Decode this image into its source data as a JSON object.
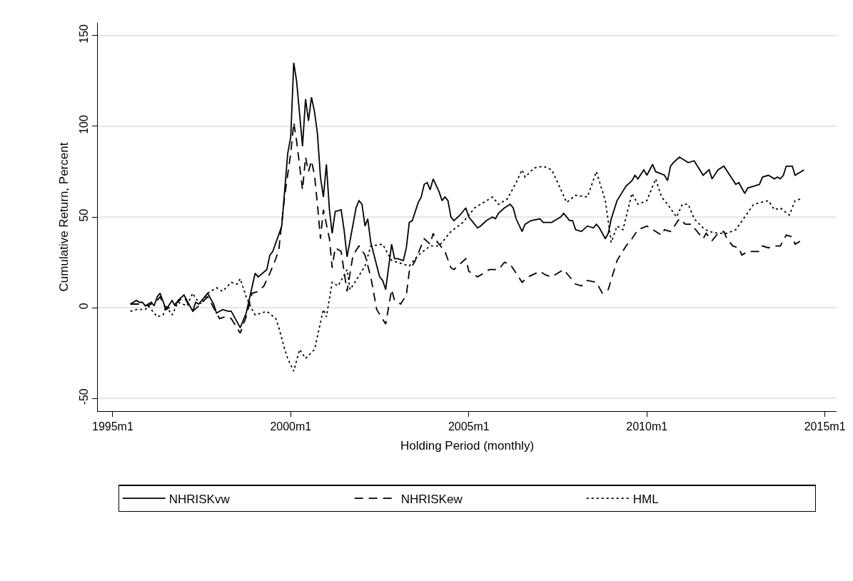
{
  "chart_data": {
    "type": "line",
    "xlabel": "Holding Period (monthly)",
    "ylabel": "Cumulative Return, Percent",
    "xlim": [
      "1994-08",
      "2015-05"
    ],
    "xticks": [
      {
        "value": "1995-01",
        "label": "1995m1"
      },
      {
        "value": "2000-01",
        "label": "2000m1"
      },
      {
        "value": "2005-01",
        "label": "2005m1"
      },
      {
        "value": "2010-01",
        "label": "2010m1"
      },
      {
        "value": "2015-01",
        "label": "2015m1"
      }
    ],
    "ylim": [
      -57,
      157
    ],
    "yticks": [
      -50,
      0,
      50,
      100,
      150
    ],
    "grid": "y",
    "legend": "bottom",
    "marker": "none",
    "series": [
      {
        "name": "NHRISKvw",
        "color": "#000000",
        "line_style": "solid",
        "x": [
          "1995-07",
          "1995-09",
          "1995-10",
          "1995-11",
          "1995-12",
          "1996-02",
          "1996-03",
          "1996-04",
          "1996-05",
          "1996-07",
          "1996-09",
          "1996-10",
          "1996-11",
          "1997-01",
          "1997-04",
          "1997-05",
          "1997-06",
          "1997-09",
          "1997-11",
          "1997-12",
          "1998-02",
          "1998-04",
          "1998-05",
          "1998-08",
          "1998-10",
          "1999-01",
          "1999-02",
          "1999-05",
          "1999-06",
          "1999-07",
          "1999-10",
          "1999-12",
          "2000-01",
          "2000-02",
          "2000-03",
          "2000-05",
          "2000-06",
          "2000-07",
          "2000-08",
          "2000-09",
          "2000-10",
          "2000-11",
          "2000-12",
          "2001-01",
          "2001-02",
          "2001-03",
          "2001-04",
          "2001-06",
          "2001-07",
          "2001-08",
          "2001-11",
          "2001-12",
          "2002-01",
          "2002-02",
          "2002-03",
          "2002-04",
          "2002-07",
          "2002-08",
          "2002-09",
          "2002-11",
          "2002-12",
          "2003-01",
          "2003-03",
          "2003-04",
          "2003-05",
          "2003-06",
          "2003-08",
          "2003-09",
          "2003-10",
          "2003-11",
          "2003-12",
          "2004-01",
          "2004-03",
          "2004-04",
          "2004-05",
          "2004-06",
          "2004-07",
          "2004-08",
          "2004-10",
          "2004-12",
          "2005-01",
          "2005-03",
          "2005-04",
          "2005-05",
          "2005-07",
          "2005-09",
          "2005-10",
          "2005-11",
          "2006-01",
          "2006-03",
          "2006-04",
          "2006-05",
          "2006-07",
          "2006-08",
          "2006-10",
          "2007-01",
          "2007-02",
          "2007-05",
          "2007-07",
          "2007-08",
          "2007-09",
          "2007-11",
          "2007-12",
          "2008-01",
          "2008-03",
          "2008-05",
          "2008-07",
          "2008-08",
          "2008-09",
          "2008-11",
          "2008-12",
          "2009-01",
          "2009-03",
          "2009-06",
          "2009-08",
          "2009-09",
          "2009-10",
          "2009-12",
          "2010-01",
          "2010-03",
          "2010-04",
          "2010-07",
          "2010-08",
          "2010-09",
          "2010-10",
          "2010-12",
          "2011-03",
          "2011-05",
          "2011-08",
          "2011-10",
          "2011-11",
          "2012-01",
          "2012-03",
          "2012-05",
          "2012-07",
          "2012-08",
          "2012-10",
          "2012-11",
          "2013-01",
          "2013-03",
          "2013-04",
          "2013-06",
          "2013-08",
          "2013-09",
          "2013-10",
          "2013-11",
          "2013-12",
          "2014-02",
          "2014-03",
          "2014-06"
        ],
        "values": [
          2,
          4,
          3,
          3,
          1,
          3,
          1,
          6,
          8,
          -1,
          4,
          1,
          4,
          7,
          -2,
          3,
          2,
          8,
          2,
          -3,
          -1,
          -2,
          -2,
          -11,
          -3,
          19,
          17,
          21,
          29,
          31,
          45,
          85,
          94,
          135,
          125,
          89,
          115,
          103,
          116,
          108,
          96,
          72,
          61,
          79,
          54,
          41,
          53,
          54,
          43,
          28,
          55,
          59,
          57,
          45,
          49,
          36,
          17,
          15,
          10,
          35,
          27,
          27,
          26,
          33,
          47,
          48,
          58,
          61,
          68,
          69,
          65,
          71,
          64,
          59,
          61,
          59,
          50,
          48,
          51,
          55,
          50,
          46,
          44,
          45,
          48,
          50,
          49,
          52,
          55,
          57,
          55,
          49,
          42,
          46,
          48,
          49,
          47,
          47,
          49,
          50,
          52,
          48,
          48,
          43,
          42,
          45,
          44,
          46,
          44,
          38,
          41,
          49,
          59,
          67,
          70,
          73,
          71,
          76,
          73,
          79,
          75,
          73,
          70,
          78,
          80,
          83,
          80,
          81,
          73,
          76,
          71,
          76,
          78,
          73,
          68,
          69,
          63,
          66,
          67,
          68,
          72,
          73,
          71,
          72,
          71,
          73,
          78,
          78,
          73,
          76
        ]
      },
      {
        "name": "NHRISKew",
        "color": "#000000",
        "line_style": "dashed",
        "x": [
          "1995-07",
          "1995-10",
          "1996-01",
          "1996-04",
          "1996-05",
          "1996-07",
          "1996-10",
          "1997-01",
          "1997-04",
          "1997-06",
          "1997-09",
          "1997-11",
          "1998-01",
          "1998-03",
          "1998-05",
          "1998-08",
          "1998-10",
          "1998-12",
          "1999-02",
          "1999-04",
          "1999-06",
          "1999-08",
          "1999-09",
          "1999-11",
          "2000-01",
          "2000-02",
          "2000-03",
          "2000-05",
          "2000-06",
          "2000-07",
          "2000-08",
          "2000-09",
          "2000-10",
          "2000-11",
          "2000-12",
          "2001-02",
          "2001-03",
          "2001-04",
          "2001-06",
          "2001-07",
          "2001-08",
          "2001-10",
          "2001-12",
          "2002-02",
          "2002-04",
          "2002-06",
          "2002-09",
          "2002-11",
          "2002-12",
          "2003-02",
          "2003-04",
          "2003-05",
          "2003-07",
          "2003-10",
          "2003-12",
          "2004-01",
          "2004-02",
          "2004-05",
          "2004-07",
          "2004-08",
          "2004-12",
          "2005-01",
          "2005-04",
          "2005-06",
          "2005-08",
          "2005-11",
          "2006-01",
          "2006-03",
          "2006-07",
          "2006-09",
          "2007-01",
          "2007-03",
          "2007-05",
          "2007-09",
          "2008-01",
          "2008-03",
          "2008-05",
          "2008-08",
          "2008-10",
          "2008-12",
          "2009-03",
          "2009-06",
          "2009-08",
          "2009-10",
          "2010-01",
          "2010-04",
          "2010-06",
          "2010-07",
          "2010-09",
          "2010-12",
          "2011-02",
          "2011-04",
          "2011-07",
          "2011-08",
          "2011-09",
          "2011-11",
          "2012-01",
          "2012-03",
          "2012-04",
          "2012-06",
          "2012-08",
          "2012-09",
          "2012-11",
          "2013-03",
          "2013-04",
          "2013-06",
          "2013-08",
          "2013-10",
          "2013-12",
          "2014-02",
          "2014-03",
          "2014-05"
        ],
        "values": [
          2,
          2,
          1,
          4,
          6,
          -1,
          2,
          6,
          -2,
          1,
          6,
          0,
          -6,
          -5,
          -6,
          -14,
          -5,
          8,
          9,
          12,
          19,
          27,
          32,
          62,
          85,
          102,
          92,
          65,
          83,
          75,
          81,
          73,
          57,
          38,
          54,
          38,
          22,
          33,
          31,
          20,
          9,
          29,
          34,
          29,
          17,
          -1,
          -9,
          10,
          4,
          2,
          7,
          20,
          26,
          38,
          35,
          41,
          37,
          31,
          22,
          21,
          27,
          20,
          17,
          19,
          21,
          21,
          25,
          24,
          14,
          17,
          20,
          18,
          17,
          21,
          13,
          12,
          15,
          14,
          8,
          10,
          26,
          34,
          38,
          43,
          45,
          42,
          40,
          43,
          42,
          49,
          46,
          46,
          40,
          38,
          41,
          37,
          41,
          42,
          38,
          34,
          33,
          29,
          31,
          31,
          34,
          33,
          34,
          34,
          40,
          39,
          35,
          37
        ]
      },
      {
        "name": "HML",
        "color": "#000000",
        "line_style": "dotted",
        "x": [
          "1995-07",
          "1995-09",
          "1995-12",
          "1996-01",
          "1996-04",
          "1996-06",
          "1996-07",
          "1996-09",
          "1996-11",
          "1997-02",
          "1997-04",
          "1997-05",
          "1997-07",
          "1997-09",
          "1997-12",
          "1998-02",
          "1998-05",
          "1998-07",
          "1998-08",
          "1998-10",
          "1998-12",
          "1999-01",
          "1999-05",
          "1999-08",
          "1999-09",
          "1999-11",
          "1999-12",
          "2000-02",
          "2000-04",
          "2000-06",
          "2000-09",
          "2000-12",
          "2001-01",
          "2001-03",
          "2001-05",
          "2001-08",
          "2001-09",
          "2001-11",
          "2002-02",
          "2002-04",
          "2002-08",
          "2002-11",
          "2003-01",
          "2003-05",
          "2003-08",
          "2003-12",
          "2004-03",
          "2004-07",
          "2004-11",
          "2005-03",
          "2005-06",
          "2005-09",
          "2005-11",
          "2006-02",
          "2006-05",
          "2006-07",
          "2006-08",
          "2006-11",
          "2007-02",
          "2007-05",
          "2007-07",
          "2007-10",
          "2008-01",
          "2008-05",
          "2008-08",
          "2008-11",
          "2009-01",
          "2009-03",
          "2009-05",
          "2009-08",
          "2009-10",
          "2010-01",
          "2010-04",
          "2010-06",
          "2010-08",
          "2010-11",
          "2011-01",
          "2011-03",
          "2011-05",
          "2011-08",
          "2011-10",
          "2012-01",
          "2012-04",
          "2012-07",
          "2012-10",
          "2013-01",
          "2013-06",
          "2013-08",
          "2013-10",
          "2014-01",
          "2014-03",
          "2014-05"
        ],
        "values": [
          -2,
          -1,
          -1,
          1,
          -5,
          -4,
          1,
          -4,
          3,
          1,
          8,
          5,
          2,
          8,
          11,
          9,
          14,
          13,
          16,
          6,
          -1,
          -4,
          -2,
          -6,
          -11,
          -23,
          -28,
          -35,
          -23,
          -28,
          -23,
          -1,
          -5,
          14,
          12,
          21,
          10,
          15,
          23,
          34,
          35,
          26,
          25,
          23,
          29,
          34,
          34,
          42,
          47,
          55,
          58,
          61,
          57,
          60,
          69,
          76,
          72,
          77,
          78,
          76,
          69,
          58,
          62,
          61,
          75,
          59,
          36,
          45,
          43,
          63,
          57,
          59,
          71,
          61,
          57,
          50,
          57,
          57,
          49,
          44,
          42,
          41,
          41,
          43,
          50,
          57,
          59,
          54,
          55,
          51,
          59,
          60
        ]
      }
    ]
  }
}
